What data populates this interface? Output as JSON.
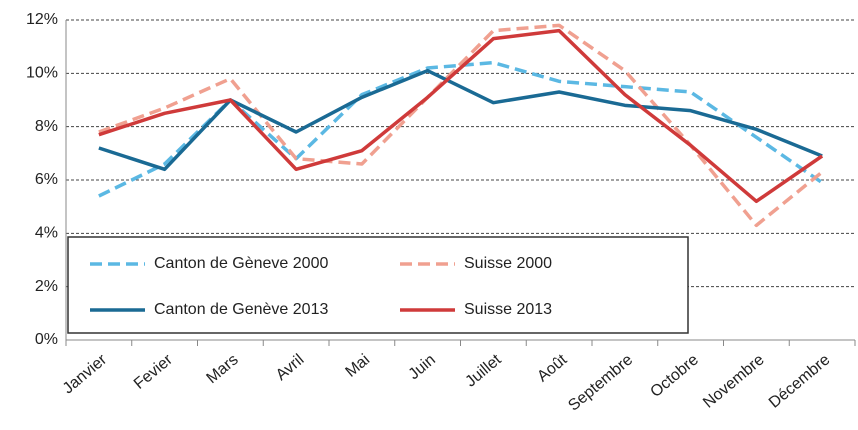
{
  "chart_data": {
    "type": "line",
    "categories": [
      "Janvier",
      "Fevier",
      "Mars",
      "Avril",
      "Mai",
      "Juin",
      "Juillet",
      "Août",
      "Septembre",
      "Octobre",
      "Novembre",
      "Décembre"
    ],
    "series": [
      {
        "name": "Canton de Gèneve 2000",
        "color": "#5bb8e3",
        "dashed": true,
        "values": [
          5.4,
          6.6,
          9.0,
          6.8,
          9.2,
          10.2,
          10.4,
          9.7,
          9.5,
          9.3,
          7.6,
          5.9
        ]
      },
      {
        "name": "Suisse 2000",
        "color": "#f0a090",
        "dashed": true,
        "values": [
          7.8,
          8.7,
          9.8,
          6.8,
          6.6,
          9.1,
          11.6,
          11.8,
          10.1,
          7.3,
          4.3,
          6.3
        ]
      },
      {
        "name": "Canton de Genève 2013",
        "color": "#1a6a94",
        "dashed": false,
        "values": [
          7.2,
          6.4,
          9.0,
          7.8,
          9.1,
          10.1,
          8.9,
          9.3,
          8.8,
          8.6,
          7.9,
          6.9
        ]
      },
      {
        "name": "Suisse 2013",
        "color": "#cf3a3a",
        "dashed": false,
        "values": [
          7.7,
          8.5,
          9.0,
          6.4,
          7.1,
          9.1,
          11.3,
          11.6,
          9.2,
          7.3,
          5.2,
          6.9
        ]
      }
    ],
    "ylim": [
      0,
      12
    ],
    "yticks": [
      {
        "value": 0,
        "label": "0%"
      },
      {
        "value": 2,
        "label": "2%"
      },
      {
        "value": 4,
        "label": "4%"
      },
      {
        "value": 6,
        "label": "6%"
      },
      {
        "value": 8,
        "label": "8%"
      },
      {
        "value": 10,
        "label": "10%"
      },
      {
        "value": 12,
        "label": "12%"
      }
    ],
    "grid": true
  }
}
